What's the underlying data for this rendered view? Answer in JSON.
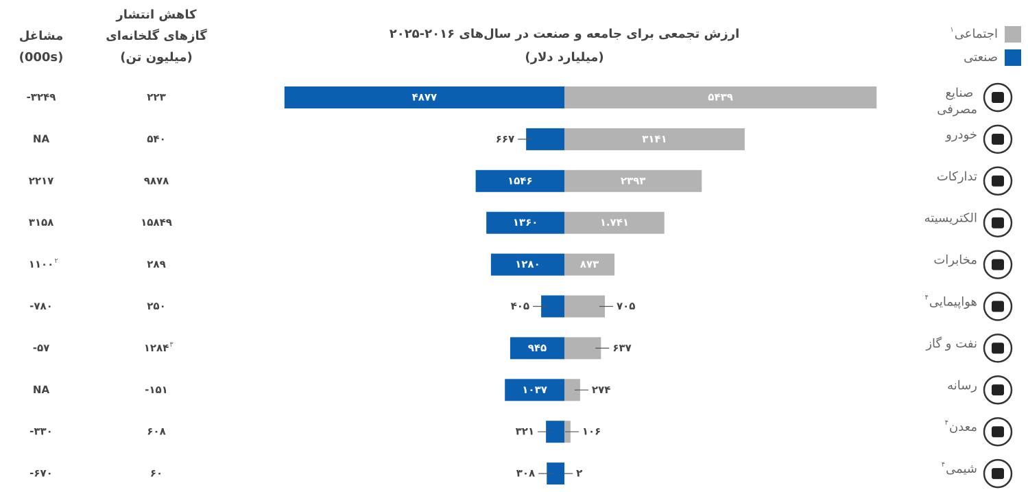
{
  "chart_data": {
    "type": "diverging-bar",
    "title": "ارزش تجمعی برای جامعه و صنعت در سال‌های ۲۰۱۶-۲۰۲۵",
    "subtitle": "(میلیارد دلار)",
    "categories": [
      "صنایع مصرفی",
      "خودرو",
      "تدارکات",
      "الکتریسیته",
      "مخابرات",
      "هواپیمایی",
      "نفت و گاز",
      "رسانه",
      "معدن",
      "شیمی"
    ],
    "category_notes": [
      null,
      null,
      null,
      null,
      null,
      "۴",
      null,
      null,
      "۴",
      "۴"
    ],
    "series": [
      {
        "name": "اجتماعی",
        "note": "۱",
        "color": "#b3b3b3",
        "side": "right",
        "values": [
          5439,
          3141,
          2393,
          1741,
          873,
          705,
          637,
          274,
          106,
          2
        ],
        "value_labels": [
          "۵۴۳۹",
          "۳۱۴۱",
          "۲۳۹۳",
          "۱.۷۴۱",
          "۸۷۳",
          "۷۰۵",
          "۶۳۷",
          "۲۷۴",
          "۱۰۶",
          "۲"
        ]
      },
      {
        "name": "صنعتی",
        "color": "#0b5fb0",
        "side": "left",
        "values": [
          4877,
          667,
          1546,
          1360,
          1280,
          405,
          945,
          1037,
          321,
          308
        ],
        "value_labels": [
          "۴۸۷۷",
          "۶۶۷",
          "۱۵۴۶",
          "۱۳۶۰",
          "۱۲۸۰",
          "۴۰۵",
          "۹۴۵",
          "۱۰۳۷",
          "۳۲۱",
          "۳۰۸"
        ]
      }
    ],
    "columns": [
      {
        "header": [
          "مشاغل",
          "(000s)"
        ],
        "values": [
          "-۳۲۴۹",
          "NA",
          "۲۲۱۷",
          "۳۱۵۸",
          "۱۱۰۰",
          "-۷۸۰",
          "-۵۷",
          "NA",
          "-۳۳۰",
          "-۶۷۰"
        ],
        "notes": [
          null,
          null,
          null,
          null,
          "۲",
          null,
          null,
          null,
          null,
          null
        ]
      },
      {
        "header": [
          "کاهش انتشار",
          "گازهای گلخانه‌ای",
          "(میلیون تن)"
        ],
        "values": [
          "۲۲۳",
          "۵۴۰",
          "۹۸۷۸",
          "۱۵۸۴۹",
          "۲۸۹",
          "۲۵۰",
          "۱۲۸۴",
          "-۱۵۱",
          "۶۰۸",
          "۶۰"
        ],
        "notes": [
          null,
          null,
          null,
          null,
          null,
          null,
          "۳",
          null,
          null,
          null
        ]
      }
    ]
  }
}
